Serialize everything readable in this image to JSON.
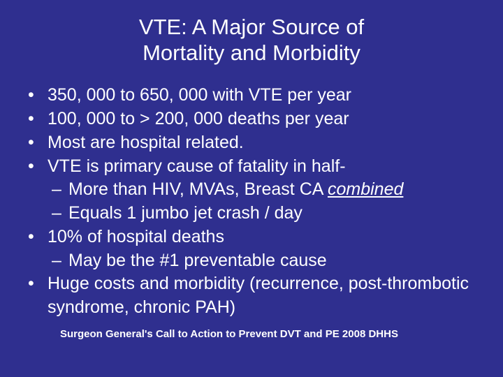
{
  "slide": {
    "background_color": "#2f2f8f",
    "text_color": "#ffffff",
    "title_line1": "VTE: A Major Source of",
    "title_line2": "Mortality and Morbidity",
    "title_fontsize": 31,
    "body_fontsize": 25,
    "bullets": [
      {
        "text": "350, 000 to 650, 000 with VTE per year"
      },
      {
        "text": "100, 000 to > 200, 000 deaths per year"
      },
      {
        "text": "Most  are hospital related."
      },
      {
        "text": "VTE is primary cause of fatality in half-",
        "subs": [
          {
            "pre": "More than HIV, MVAs, Breast CA ",
            "underlined": "combined",
            "post": ""
          },
          {
            "pre": "Equals 1 jumbo jet crash / day",
            "underlined": "",
            "post": ""
          }
        ]
      },
      {
        "text": "10% of hospital deaths",
        "subs": [
          {
            "pre": "May be the #1 preventable cause",
            "underlined": "",
            "post": ""
          }
        ]
      },
      {
        "text": "Huge costs and morbidity (recurrence, post-thrombotic syndrome, chronic PAH)"
      }
    ],
    "citation": "Surgeon General's Call to Action to Prevent DVT and PE  2008  DHHS",
    "citation_fontsize": 15
  }
}
